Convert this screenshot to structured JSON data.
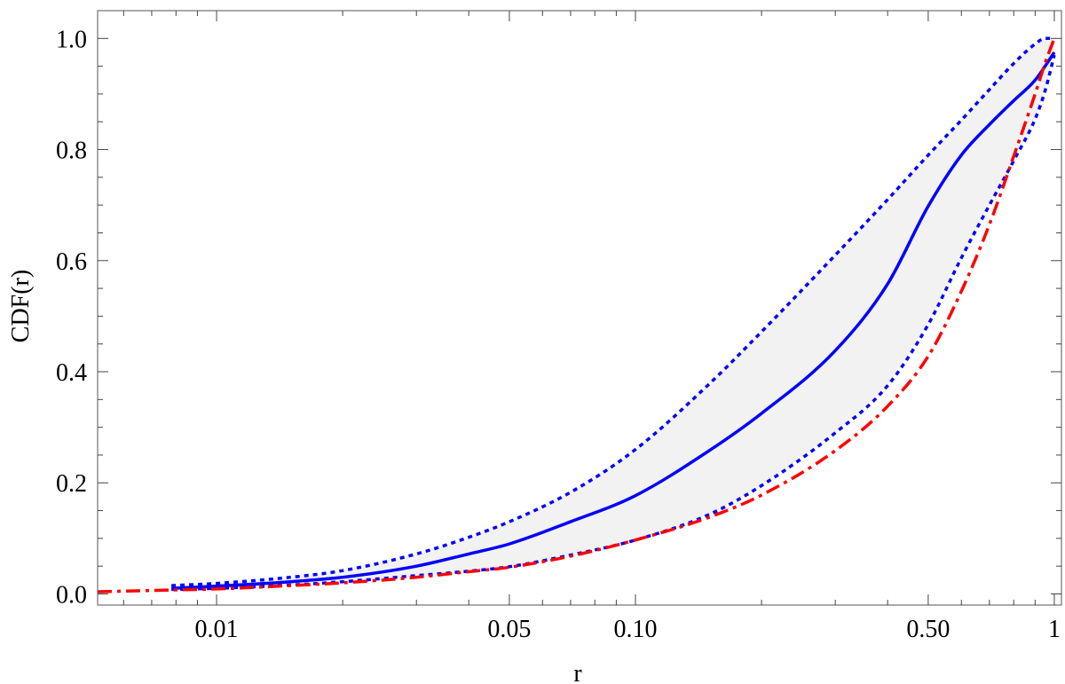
{
  "chart_data": {
    "type": "line",
    "title": "",
    "xlabel": "r",
    "ylabel": "CDF(r)",
    "x_scale": "log",
    "xlim": [
      0.0052,
      1.04
    ],
    "ylim": [
      -0.02,
      1.05
    ],
    "x_ticks": [
      {
        "value": 0.01,
        "label": "0.01"
      },
      {
        "value": 0.05,
        "label": "0.05"
      },
      {
        "value": 0.1,
        "label": "0.10"
      },
      {
        "value": 0.5,
        "label": "0.50"
      },
      {
        "value": 1,
        "label": "1"
      }
    ],
    "y_ticks": [
      {
        "value": 0.0,
        "label": "0.0"
      },
      {
        "value": 0.2,
        "label": "0.2"
      },
      {
        "value": 0.4,
        "label": "0.4"
      },
      {
        "value": 0.6,
        "label": "0.6"
      },
      {
        "value": 0.8,
        "label": "0.8"
      },
      {
        "value": 1.0,
        "label": "1.0"
      }
    ],
    "grid": false,
    "band_color": "#f2f2f2",
    "series": [
      {
        "style": "dotted",
        "color": "#0000ff",
        "x": [
          0.0078,
          0.01,
          0.015,
          0.02,
          0.03,
          0.04,
          0.05,
          0.07,
          0.1,
          0.15,
          0.2,
          0.3,
          0.4,
          0.5,
          0.6,
          0.7,
          0.8,
          0.9,
          0.95,
          1.0
        ],
        "y": [
          0.015,
          0.019,
          0.03,
          0.042,
          0.072,
          0.102,
          0.13,
          0.183,
          0.26,
          0.378,
          0.472,
          0.61,
          0.71,
          0.79,
          0.853,
          0.908,
          0.955,
          0.99,
          1.0,
          1.0
        ]
      },
      {
        "style": "solid",
        "color": "#0000ff",
        "x": [
          0.0078,
          0.01,
          0.015,
          0.02,
          0.03,
          0.04,
          0.05,
          0.07,
          0.1,
          0.15,
          0.2,
          0.3,
          0.4,
          0.5,
          0.6,
          0.7,
          0.8,
          0.9,
          1.0
        ],
        "y": [
          0.01,
          0.014,
          0.022,
          0.03,
          0.05,
          0.072,
          0.09,
          0.13,
          0.177,
          0.258,
          0.325,
          0.438,
          0.558,
          0.698,
          0.79,
          0.845,
          0.888,
          0.925,
          0.975
        ]
      },
      {
        "style": "dotted",
        "color": "#0000ff",
        "x": [
          0.0078,
          0.01,
          0.015,
          0.02,
          0.03,
          0.04,
          0.05,
          0.07,
          0.1,
          0.15,
          0.2,
          0.3,
          0.4,
          0.5,
          0.6,
          0.7,
          0.8,
          0.9,
          0.95,
          1.0
        ],
        "y": [
          0.008,
          0.01,
          0.016,
          0.022,
          0.033,
          0.041,
          0.049,
          0.07,
          0.097,
          0.143,
          0.195,
          0.29,
          0.375,
          0.485,
          0.605,
          0.7,
          0.78,
          0.855,
          0.905,
          0.97
        ]
      },
      {
        "style": "dashdot",
        "color": "#ff0000",
        "x": [
          0.0052,
          0.0078,
          0.01,
          0.015,
          0.02,
          0.03,
          0.04,
          0.05,
          0.07,
          0.1,
          0.15,
          0.2,
          0.3,
          0.4,
          0.5,
          0.6,
          0.7,
          0.8,
          0.9,
          0.95,
          1.0
        ],
        "y": [
          0.004,
          0.007,
          0.009,
          0.015,
          0.02,
          0.03,
          0.04,
          0.048,
          0.068,
          0.097,
          0.138,
          0.178,
          0.258,
          0.338,
          0.428,
          0.545,
          0.665,
          0.788,
          0.9,
          0.955,
          1.0
        ]
      }
    ]
  }
}
